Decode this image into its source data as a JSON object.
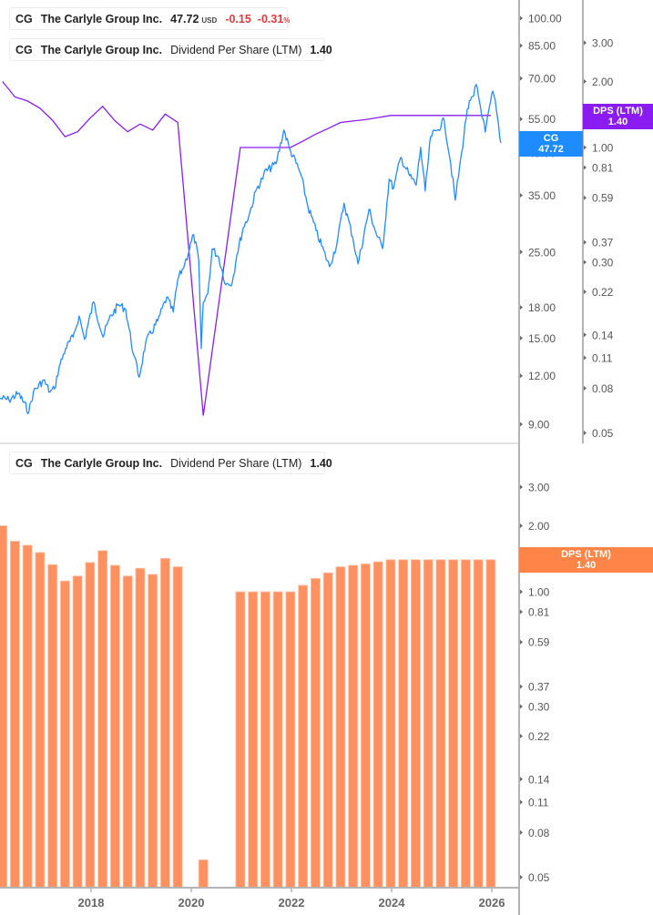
{
  "colors": {
    "price": "#1e8cff",
    "dps_line": "#8a1cf2",
    "dps_bar": "#ff9160",
    "loss": "#e0393e",
    "axis": "#b4b4b4"
  },
  "legend_price": {
    "ticker": "CG",
    "name": "The Carlyle Group Inc.",
    "price": "47.72",
    "currency": "USD",
    "change": "-0.15",
    "change_pct": "-0.31",
    "pct_sign": "%"
  },
  "legend_dps_top": {
    "ticker": "CG",
    "name": "The Carlyle Group Inc.",
    "metric": "Dividend Per Share (LTM)",
    "value": "1.40"
  },
  "legend_dps_bottom": {
    "ticker": "CG",
    "name": "The Carlyle Group Inc.",
    "metric": "Dividend Per Share (LTM)",
    "value": "1.40"
  },
  "tags": {
    "price": {
      "label": "CG",
      "value": "47.72"
    },
    "dps_top": {
      "label": "DPS (LTM)",
      "value": "1.40"
    },
    "dps_bottom": {
      "label": "DPS (LTM)",
      "value": "1.40"
    }
  },
  "chart_data": [
    {
      "type": "line",
      "scale": "log",
      "price_axis_ticks": [
        "100.00",
        "85.00",
        "70.00",
        "55.00",
        "45.00",
        "35.00",
        "25.00",
        "18.00",
        "15.00",
        "12.00",
        "9.00"
      ],
      "dps_axis_ticks": [
        "3.00",
        "2.00",
        "1.00",
        "0.81",
        "0.59",
        "0.37",
        "0.30",
        "0.22",
        "0.14",
        "0.11",
        "0.08",
        "0.05"
      ],
      "series": [
        {
          "key": "price",
          "x": [
            2016.18,
            2016.36,
            2016.55,
            2016.76,
            2016.85,
            2017.05,
            2017.18,
            2017.27,
            2017.36,
            2017.49,
            2017.64,
            2017.76,
            2017.87,
            2018.05,
            2018.24,
            2018.36,
            2018.55,
            2018.69,
            2018.85,
            2018.96,
            2019.09,
            2019.33,
            2019.51,
            2019.64,
            2019.73,
            2019.87,
            2020.05,
            2020.15,
            2020.2,
            2020.24,
            2020.33,
            2020.42,
            2020.55,
            2020.69,
            2020.82,
            2020.91,
            2021.04,
            2021.15,
            2021.31,
            2021.42,
            2021.45,
            2021.69,
            2021.85,
            2021.96,
            2022.18,
            2022.33,
            2022.49,
            2022.76,
            2022.91,
            2023.05,
            2023.22,
            2023.33,
            2023.55,
            2023.67,
            2023.82,
            2023.95,
            2024.04,
            2024.18,
            2024.36,
            2024.49,
            2024.58,
            2024.67,
            2024.78,
            2024.91,
            2025.05,
            2025.18,
            2025.27,
            2025.4,
            2025.51,
            2025.64,
            2025.69,
            2025.82,
            2025.87,
            2026.02,
            2026.09,
            2026.18
          ],
          "y": [
            10.5,
            10.4,
            10.8,
            9.7,
            10.9,
            11.7,
            10.9,
            11.1,
            12.6,
            14.1,
            15.1,
            17.1,
            14.9,
            18.6,
            15.1,
            16.8,
            18.3,
            17.8,
            13.6,
            11.9,
            14.6,
            16.6,
            19.1,
            17.5,
            21.2,
            23.3,
            27.7,
            23.7,
            14.1,
            18.5,
            19.5,
            25.5,
            24.2,
            20.6,
            20.9,
            24.6,
            28.9,
            31.0,
            36.5,
            38.5,
            39.9,
            42.2,
            51.5,
            46.2,
            39.9,
            32.7,
            28.4,
            22.9,
            26.4,
            33.4,
            27.4,
            23.3,
            32.2,
            28.4,
            25.5,
            38.5,
            36.5,
            43.8,
            39.3,
            37.2,
            46.5,
            35.9,
            49.6,
            51.5,
            54.6,
            42.2,
            34.0,
            45.2,
            58.3,
            63.2,
            67.5,
            55.2,
            50.9,
            64.9,
            58.3,
            47.72
          ]
        }
      ]
    },
    {
      "type": "bar",
      "scale": "log",
      "x_ticks": [
        "2018",
        "2020",
        "2022",
        "2024",
        "2026"
      ],
      "x_tick_values": [
        2018,
        2020,
        2022,
        2024,
        2026
      ],
      "y_ticks": [
        "3.00",
        "2.00",
        "1.00",
        "0.81",
        "0.59",
        "0.37",
        "0.30",
        "0.22",
        "0.14",
        "0.11",
        "0.08",
        "0.05"
      ],
      "series": [
        {
          "key": "dps_ltm",
          "x": [
            2016.23,
            2016.48,
            2016.73,
            2016.98,
            2017.23,
            2017.48,
            2017.73,
            2017.98,
            2018.23,
            2018.48,
            2018.73,
            2018.98,
            2019.23,
            2019.48,
            2019.73,
            2020.24,
            2020.98,
            2021.23,
            2021.48,
            2021.73,
            2021.98,
            2022.23,
            2022.48,
            2022.73,
            2022.98,
            2023.23,
            2023.48,
            2023.73,
            2023.98,
            2024.23,
            2024.48,
            2024.73,
            2024.98,
            2025.23,
            2025.48,
            2025.73,
            2025.98
          ],
          "y": [
            2.0,
            1.7,
            1.63,
            1.51,
            1.33,
            1.12,
            1.18,
            1.36,
            1.54,
            1.32,
            1.18,
            1.28,
            1.2,
            1.42,
            1.3,
            0.06,
            1.0,
            1.0,
            1.0,
            1.0,
            1.0,
            1.07,
            1.15,
            1.22,
            1.3,
            1.32,
            1.34,
            1.37,
            1.4,
            1.4,
            1.4,
            1.4,
            1.4,
            1.4,
            1.4,
            1.4,
            1.4
          ]
        }
      ]
    }
  ]
}
